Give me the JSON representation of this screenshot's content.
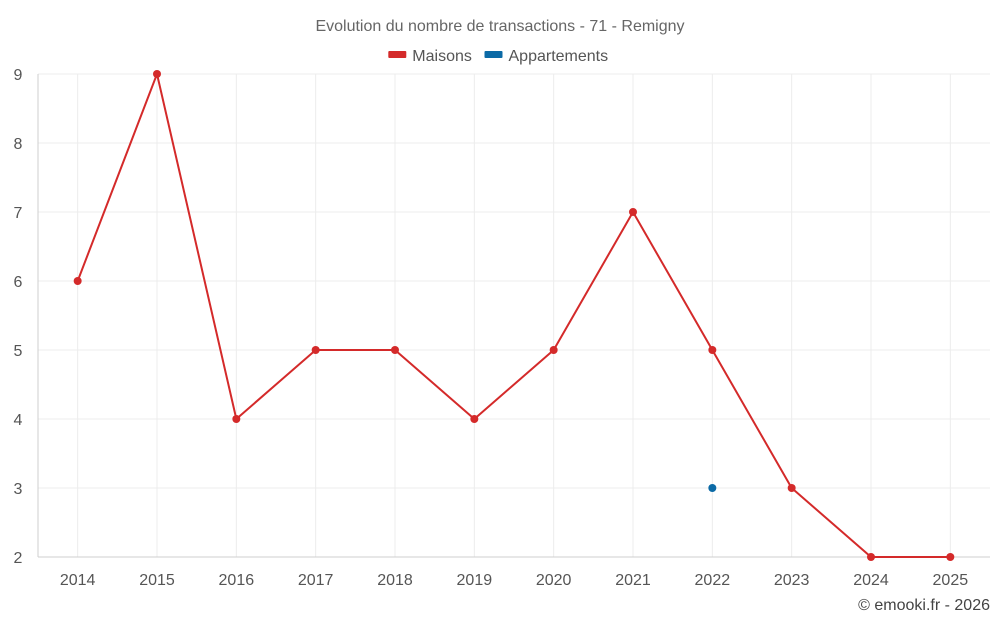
{
  "chart_data": {
    "type": "line",
    "title": "Evolution du nombre de transactions - 71 - Remigny",
    "categories": [
      "2014",
      "2015",
      "2016",
      "2017",
      "2018",
      "2019",
      "2020",
      "2021",
      "2022",
      "2023",
      "2024",
      "2025"
    ],
    "series": [
      {
        "name": "Maisons",
        "color": "#d42a2a",
        "values": [
          6,
          9,
          4,
          5,
          5,
          4,
          5,
          7,
          5,
          3,
          2,
          2
        ]
      },
      {
        "name": "Appartements",
        "color": "#0b6aa6",
        "values": [
          null,
          null,
          null,
          null,
          null,
          null,
          null,
          null,
          3,
          null,
          null,
          null
        ]
      }
    ],
    "ylim": [
      2,
      9
    ],
    "yticks": [
      2,
      3,
      4,
      5,
      6,
      7,
      8,
      9
    ],
    "xlabel": "",
    "ylabel": "",
    "grid": true,
    "legend": "top-center"
  },
  "credit": "© emooki.fr - 2026"
}
